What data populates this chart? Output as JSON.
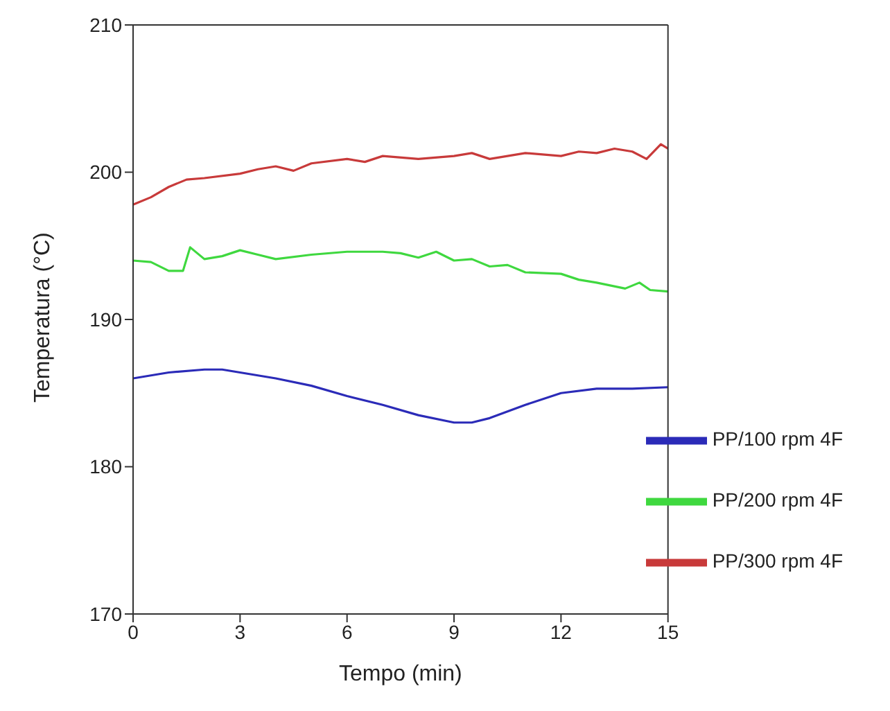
{
  "chart_data": {
    "type": "line",
    "xlabel": "Tempo (min)",
    "ylabel": "Temperatura (°C)",
    "xlim": [
      0,
      15
    ],
    "xticks": [
      0,
      3,
      6,
      9,
      12,
      15
    ],
    "ylim": [
      170,
      210
    ],
    "yticks": [
      170,
      180,
      190,
      200,
      210
    ],
    "grid": false,
    "legend": "bottom right",
    "marker": "none",
    "line_style": "solid",
    "series": [
      {
        "name": "PP/100 rpm 4F",
        "color": "#2b2bb8",
        "x": [
          0,
          1,
          2,
          2.5,
          3,
          4,
          5,
          6,
          7,
          8,
          9,
          9.5,
          10,
          11,
          12,
          13,
          14,
          15
        ],
        "values": [
          186.0,
          186.4,
          186.6,
          186.6,
          186.4,
          186.0,
          185.5,
          184.8,
          184.2,
          183.5,
          183.0,
          183.0,
          183.3,
          184.2,
          185.0,
          185.3,
          185.3,
          185.4
        ]
      },
      {
        "name": "PP/200 rpm 4F",
        "color": "#3fd83f",
        "x": [
          0,
          0.5,
          1,
          1.4,
          1.6,
          2,
          2.5,
          3,
          3.5,
          4,
          5,
          6,
          7,
          7.5,
          8,
          8.5,
          9,
          9.5,
          10,
          10.5,
          11,
          12,
          12.5,
          13,
          13.8,
          14.2,
          14.5,
          15
        ],
        "values": [
          194.0,
          193.9,
          193.3,
          193.3,
          194.9,
          194.1,
          194.3,
          194.7,
          194.4,
          194.1,
          194.4,
          194.6,
          194.6,
          194.5,
          194.2,
          194.6,
          194.0,
          194.1,
          193.6,
          193.7,
          193.2,
          193.1,
          192.7,
          192.5,
          192.1,
          192.5,
          192.0,
          191.9
        ]
      },
      {
        "name": "PP/300 rpm 4F",
        "color": "#c83a3a",
        "x": [
          0,
          0.5,
          1,
          1.5,
          2,
          3,
          3.5,
          4,
          4.5,
          5,
          6,
          6.5,
          7,
          8,
          9,
          9.5,
          10,
          11,
          12,
          12.5,
          13,
          13.5,
          14,
          14.4,
          14.8,
          15
        ],
        "values": [
          197.8,
          198.3,
          199.0,
          199.5,
          199.6,
          199.9,
          200.2,
          200.4,
          200.1,
          200.6,
          200.9,
          200.7,
          201.1,
          200.9,
          201.1,
          201.3,
          200.9,
          201.3,
          201.1,
          201.4,
          201.3,
          201.6,
          201.4,
          200.9,
          201.9,
          201.6
        ]
      }
    ]
  }
}
